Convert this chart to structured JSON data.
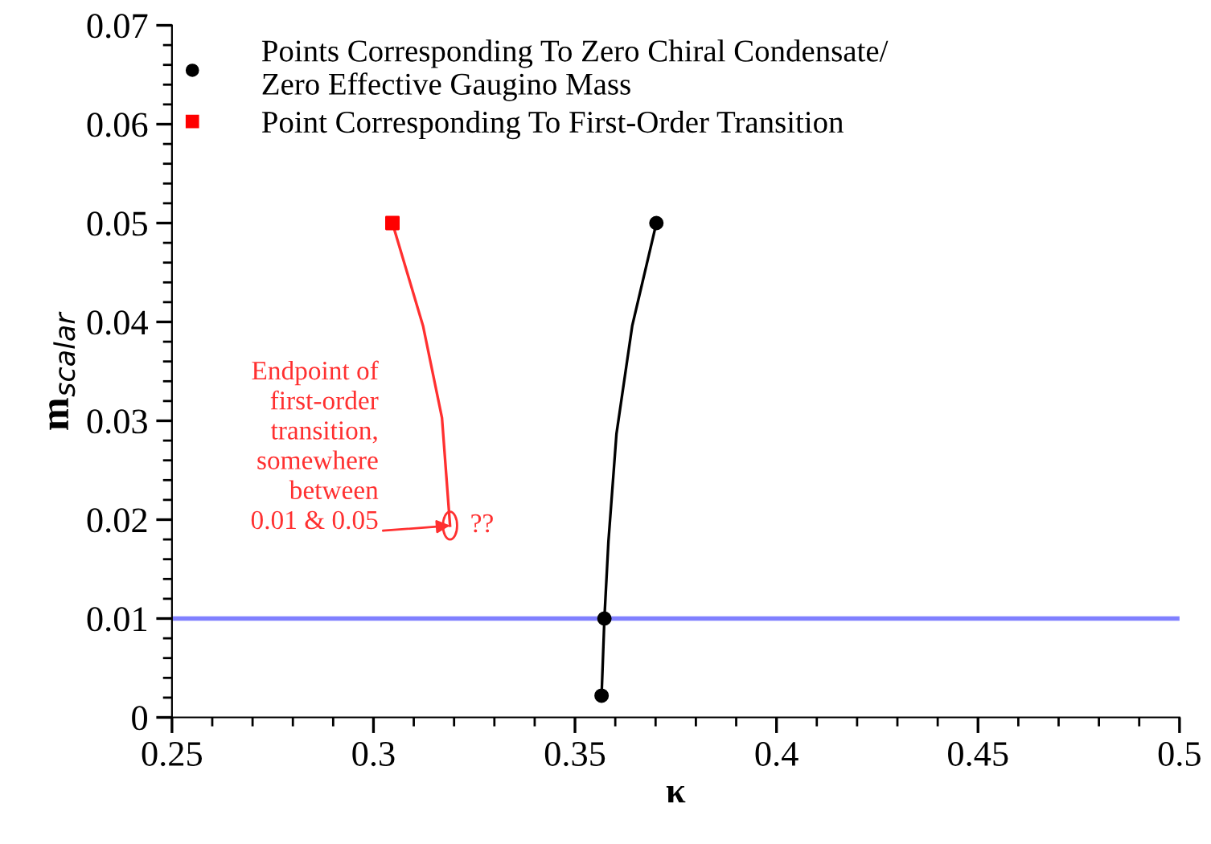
{
  "chart_data": {
    "type": "scatter",
    "xlabel": "κ",
    "ylabel": "m$_{scalar}$",
    "xlim": [
      0.25,
      0.5
    ],
    "xticks": [
      0.25,
      0.3,
      0.35,
      0.4,
      0.45,
      0.5
    ],
    "ylim": [
      0,
      0.07
    ],
    "yticks": [
      0,
      0.01,
      0.02,
      0.03,
      0.04,
      0.05,
      0.06,
      0.07
    ],
    "grid": false,
    "legend": "top",
    "marker": "circle",
    "series": [
      {
        "name": "Points Corresponding To Zero Chiral Condensate/\nZero Effective Gaugino Mass",
        "color": "#000000",
        "x": [
          0.3566,
          0.3573,
          0.3702
        ],
        "values": [
          0.0022,
          0.01,
          0.05
        ]
      },
      {
        "name": "Point Corresponding To First-Order Transition",
        "color": "#ff0000",
        "x": [
          0.3047
        ],
        "values": [
          0.05
        ],
        "marker": "square"
      },
      {
        "type": "line",
        "color": "#000000",
        "marker": "none",
        "x": [
          0.3566,
          0.3573,
          0.3583,
          0.3603,
          0.3642,
          0.3702
        ],
        "values": [
          0.0022,
          0.01,
          0.0178,
          0.0287,
          0.0396,
          0.05
        ]
      },
      {
        "type": "line",
        "color": "#ff3030",
        "marker": "none",
        "x": [
          0.3047,
          0.3123,
          0.317,
          0.319
        ],
        "values": [
          0.05,
          0.0396,
          0.0303,
          0.0194
        ]
      }
    ],
    "ref_lines": [
      {
        "axis": "y",
        "value": 0.01,
        "color": "#8080ff"
      }
    ],
    "annotations": [
      {
        "text": "Endpoint of\nfirst-order\ntransition,\nsomewhere\nbetween\n0.01 & 0.05",
        "x": 0.319,
        "y": 0.0194
      },
      {
        "text": "??",
        "x": 0.319,
        "y": 0.0194
      }
    ]
  }
}
